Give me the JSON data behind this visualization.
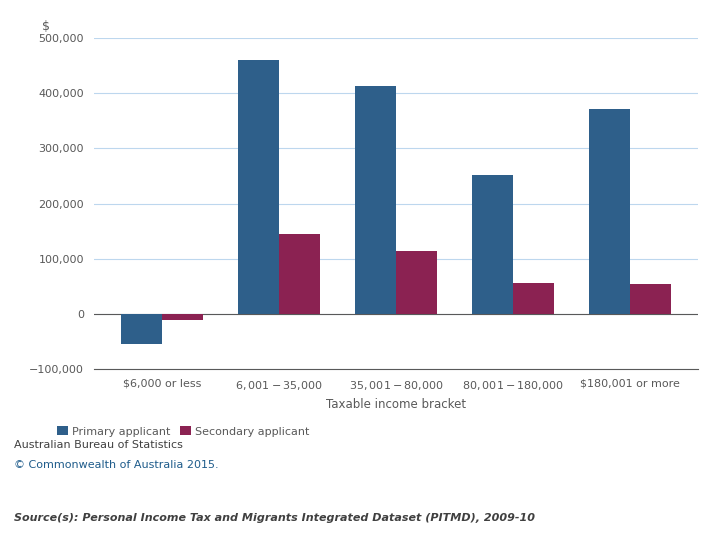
{
  "categories": [
    "$6,000 or less",
    "$6,001-$35,000",
    "$35,001-$80,000",
    "$80,001-$180,000",
    "$180,001 or more"
  ],
  "primary": [
    -55000,
    460000,
    413000,
    252000,
    372000
  ],
  "secondary": [
    -10000,
    145000,
    115000,
    57000,
    55000
  ],
  "primary_color": "#2E5F8A",
  "secondary_color": "#8B2252",
  "xlabel": "Taxable income bracket",
  "ylabel": "$",
  "ylim": [
    -100000,
    500000
  ],
  "yticks": [
    -100000,
    0,
    100000,
    200000,
    300000,
    400000,
    500000
  ],
  "legend_primary": "Primary applicant",
  "legend_secondary": "Secondary applicant",
  "footer1": "Australian Bureau of Statistics",
  "footer2": "© Commonwealth of Australia 2015.",
  "footer3": "Source(s): Personal Income Tax and Migrants Integrated Dataset (PITMD), 2009-10",
  "bar_width": 0.35,
  "grid_color": "#BDD7EE",
  "background_color": "#FFFFFF"
}
